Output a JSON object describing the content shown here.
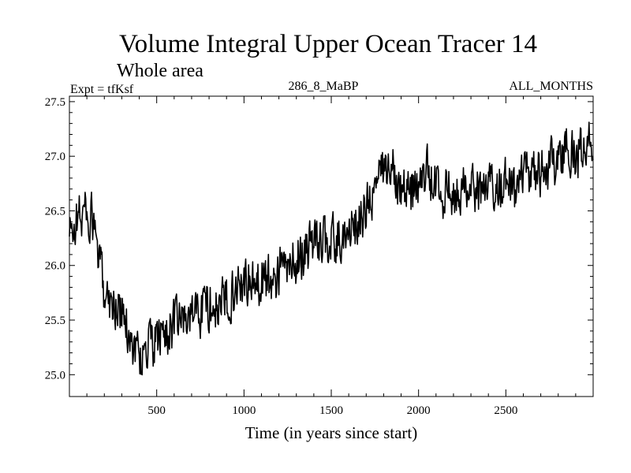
{
  "chart_data": {
    "type": "line",
    "title": "Volume Integral Upper Ocean Tracer 14",
    "subtitle": "Whole area",
    "header_left": "Expt = tfKsf",
    "header_center": "286_8_MaBP",
    "header_right": "ALL_MONTHS",
    "xlabel": "Time (in years since start)",
    "ylabel": "",
    "xlim": [
      0,
      3000
    ],
    "ylim": [
      24.8,
      27.55
    ],
    "xticks": [
      500,
      1000,
      1500,
      2000,
      2500
    ],
    "xtick_labels": [
      "500",
      "1000",
      "1500",
      "2000",
      "2500"
    ],
    "yticks": [
      25.0,
      25.5,
      26.0,
      26.5,
      27.0,
      27.5
    ],
    "ytick_labels": [
      "25.0",
      "25.5",
      "26.0",
      "26.5",
      "27.0",
      "27.5"
    ],
    "grid": false,
    "series": [
      {
        "name": "Tracer 14",
        "color": "#000000",
        "x": [
          0,
          50,
          100,
          140,
          170,
          200,
          250,
          300,
          350,
          400,
          450,
          500,
          550,
          600,
          650,
          700,
          750,
          800,
          850,
          900,
          950,
          1000,
          1050,
          1100,
          1150,
          1200,
          1250,
          1300,
          1350,
          1400,
          1450,
          1500,
          1550,
          1600,
          1650,
          1700,
          1750,
          1800,
          1850,
          1900,
          1950,
          2000,
          2050,
          2100,
          2150,
          2200,
          2250,
          2300,
          2350,
          2400,
          2450,
          2500,
          2550,
          2600,
          2650,
          2700,
          2750,
          2800,
          2850,
          2900,
          2950,
          3000
        ],
        "values": [
          26.25,
          26.45,
          26.5,
          26.35,
          26.0,
          25.8,
          25.65,
          25.55,
          25.35,
          25.15,
          25.25,
          25.3,
          25.4,
          25.45,
          25.5,
          25.55,
          25.6,
          25.65,
          25.6,
          25.7,
          25.8,
          25.9,
          25.8,
          25.9,
          25.85,
          25.95,
          26.0,
          26.05,
          26.15,
          26.2,
          26.25,
          26.2,
          26.25,
          26.3,
          26.4,
          26.5,
          26.7,
          26.85,
          26.95,
          26.75,
          26.65,
          26.75,
          26.85,
          26.7,
          26.65,
          26.7,
          26.75,
          26.65,
          26.7,
          26.7,
          26.75,
          26.75,
          26.65,
          26.8,
          26.85,
          26.85,
          26.9,
          27.0,
          27.05,
          27.0,
          27.1,
          27.2
        ]
      }
    ]
  }
}
